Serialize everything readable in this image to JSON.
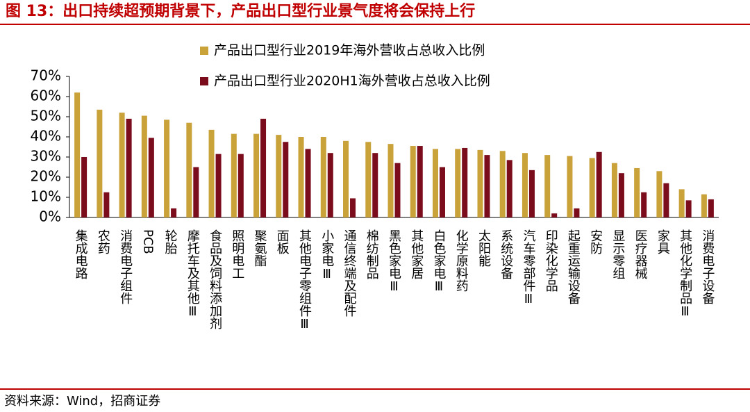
{
  "chart_data": {
    "type": "bar",
    "title": "图 13：出口持续超预期背景下，产品出口型行业景气度将会保持上行",
    "source": "资料来源：Wind，招商证券",
    "categories": [
      "集成电路",
      "农药",
      "消费电子组件",
      "PCB",
      "轮胎",
      "摩托车及其他Ⅲ",
      "食品及饲料添加剂",
      "照明电工",
      "聚氨酯",
      "面板",
      "其他电子零组件Ⅲ",
      "小家电Ⅲ",
      "通信终端及配件",
      "棉纺制品",
      "黑色家电Ⅲ",
      "其他家居",
      "白色家电Ⅲ",
      "化学原料药",
      "太阳能",
      "系统设备",
      "汽车零部件Ⅲ",
      "印染化学品",
      "起重运输设备",
      "安防",
      "显示零组",
      "医疗器械",
      "家具",
      "其他化学制品Ⅲ",
      "消费电子设备"
    ],
    "series": [
      {
        "name": "产品出口型行业2019年海外营收占总收入比例",
        "color": "#c9a23a",
        "values": [
          62,
          53.5,
          52,
          50.5,
          48.5,
          47,
          43.5,
          41.5,
          41.5,
          41,
          40,
          40,
          38,
          37.5,
          36.5,
          35.5,
          34,
          34,
          33.5,
          33,
          32,
          31,
          30.5,
          29.5,
          27,
          24.5,
          23,
          14,
          11.5
        ]
      },
      {
        "name": "产品出口型行业2020H1海外营收占总收入比例",
        "color": "#7b0c1c",
        "values": [
          30,
          12.5,
          49,
          39.5,
          4.5,
          25,
          31.5,
          31.5,
          49,
          37.5,
          34,
          32,
          9.5,
          32,
          27,
          35.5,
          25,
          34.5,
          31,
          28.5,
          23.5,
          2,
          4.5,
          32.5,
          22,
          12.5,
          17,
          8.5,
          9
        ]
      }
    ],
    "ylim": [
      0,
      70
    ],
    "yticks": [
      {
        "value": 0,
        "label": "0%"
      },
      {
        "value": 10,
        "label": "10%"
      },
      {
        "value": 20,
        "label": "20%"
      },
      {
        "value": 30,
        "label": "30%"
      },
      {
        "value": 40,
        "label": "40%"
      },
      {
        "value": 50,
        "label": "50%"
      },
      {
        "value": 60,
        "label": "60%"
      },
      {
        "value": 70,
        "label": "70%"
      }
    ],
    "grid": false
  }
}
